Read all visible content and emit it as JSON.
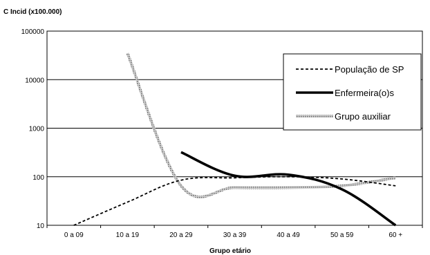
{
  "chart_data": {
    "type": "line",
    "ylabel": "C Incid (x100.000)",
    "xlabel": "Grupo etário",
    "y_scale": "log",
    "ylim": [
      10,
      100000
    ],
    "y_ticks": [
      10,
      100,
      1000,
      10000,
      100000
    ],
    "y_tick_labels": [
      "10",
      "100",
      "1000",
      "10000",
      "100000"
    ],
    "categories": [
      "0 a 09",
      "10 a 19",
      "20 a 29",
      "30 a 39",
      "40 a 49",
      "50 a 59",
      "60 +"
    ],
    "grid": "horizontal",
    "legend_position": "top-right",
    "series": [
      {
        "name": "População de SP",
        "style": "dashed",
        "color": "#000000",
        "values": [
          10,
          30,
          85,
          95,
          100,
          90,
          65
        ]
      },
      {
        "name": "Enfermeira(o)s",
        "style": "solid-thick",
        "color": "#000000",
        "values": [
          null,
          null,
          320,
          105,
          110,
          55,
          10
        ]
      },
      {
        "name": "Grupo auxiliar",
        "style": "hatched",
        "color": "#999999",
        "values": [
          null,
          35000,
          65,
          60,
          60,
          65,
          95
        ]
      }
    ]
  }
}
